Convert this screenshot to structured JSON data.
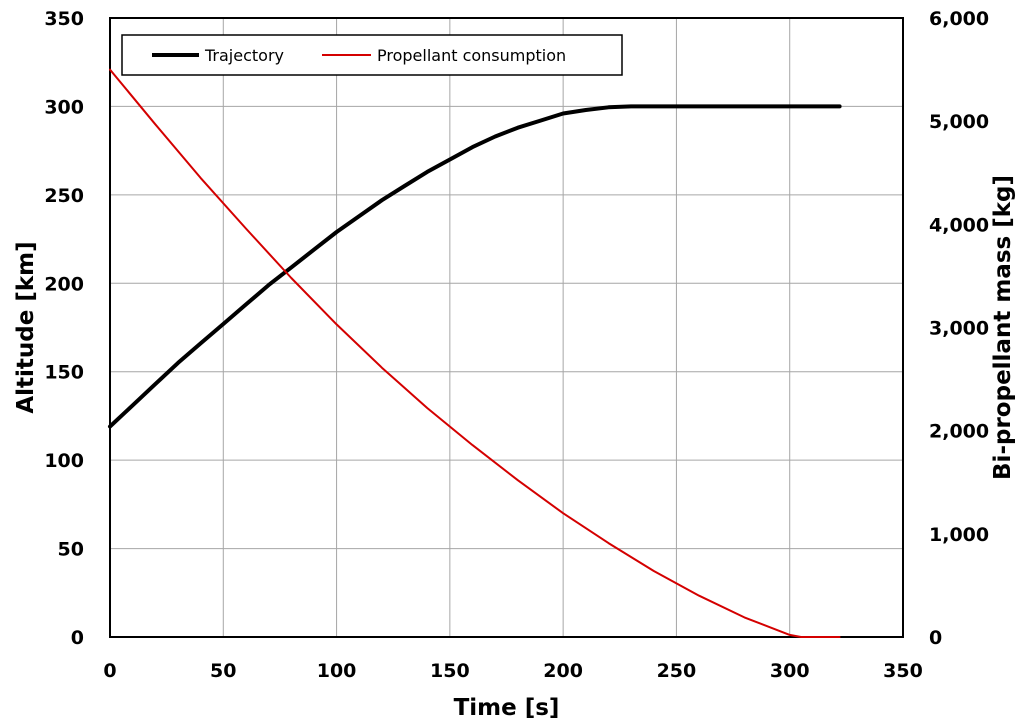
{
  "chart_data": {
    "type": "line",
    "xlabel": "Time [s]",
    "ylabel_left": "Altitude [km]",
    "ylabel_right": "Bi-propellant mass  [kg]",
    "xlim": [
      0,
      350
    ],
    "ylim_left": [
      0,
      350
    ],
    "ylim_right": [
      0,
      6000
    ],
    "x_ticks": [
      "0",
      "50",
      "100",
      "150",
      "200",
      "250",
      "300",
      "350"
    ],
    "y_left_ticks": [
      "0",
      "50",
      "100",
      "150",
      "200",
      "250",
      "300",
      "350"
    ],
    "y_right_ticks": [
      "0",
      "1,000",
      "2,000",
      "3,000",
      "4,000",
      "5,000",
      "6,000"
    ],
    "grid": true,
    "legend_position": "top-left",
    "series": [
      {
        "name": "Trajectory",
        "axis": "left",
        "color": "#000000",
        "x": [
          0,
          10,
          20,
          30,
          40,
          50,
          60,
          70,
          80,
          90,
          100,
          110,
          120,
          130,
          140,
          150,
          160,
          170,
          180,
          190,
          200,
          210,
          220,
          230,
          240,
          250,
          260,
          270,
          280,
          290,
          300,
          310,
          322
        ],
        "y": [
          119,
          131,
          143,
          155,
          166,
          177,
          188,
          199,
          209,
          219,
          229,
          238,
          247,
          255,
          263,
          270,
          277,
          283,
          288,
          292,
          296,
          298,
          299.5,
          300,
          300,
          300,
          300,
          300,
          300,
          300,
          300,
          300,
          300
        ]
      },
      {
        "name": "Propellant consumption",
        "axis": "right",
        "color": "#d40000",
        "x": [
          0,
          20,
          40,
          60,
          80,
          100,
          120,
          140,
          160,
          180,
          200,
          220,
          240,
          260,
          280,
          300,
          305,
          322
        ],
        "y": [
          5500,
          4970,
          4450,
          3960,
          3480,
          3030,
          2610,
          2220,
          1860,
          1520,
          1200,
          910,
          640,
          400,
          190,
          20,
          0,
          0
        ]
      }
    ]
  }
}
